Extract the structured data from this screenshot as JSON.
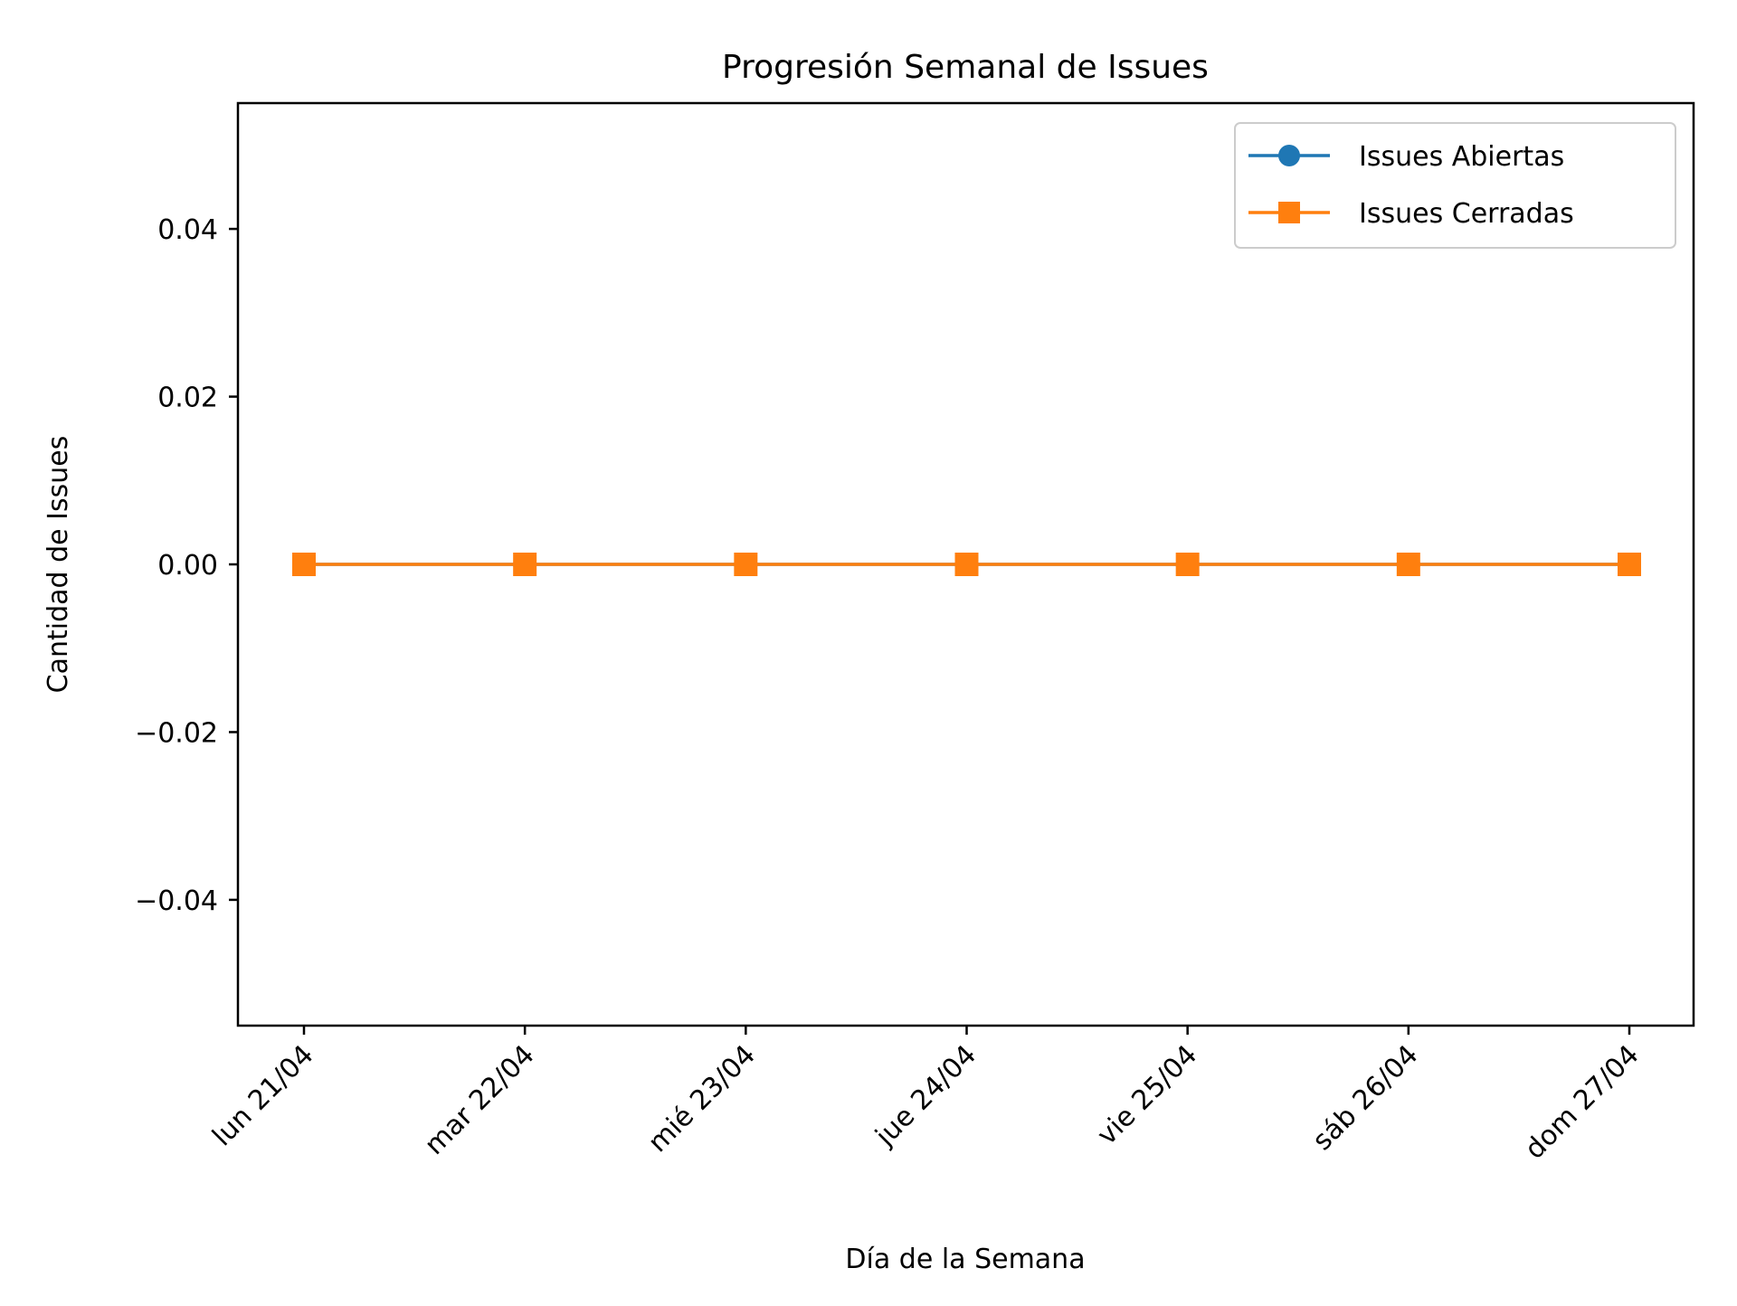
{
  "chart_data": {
    "type": "line",
    "title": "Progresión Semanal de Issues",
    "xlabel": "Día de la Semana",
    "ylabel": "Cantidad de Issues",
    "categories": [
      "lun 21/04",
      "mar 22/04",
      "mié 23/04",
      "jue 24/04",
      "vie 25/04",
      "sáb 26/04",
      "dom 27/04"
    ],
    "ylim": [
      -0.055,
      0.055
    ],
    "yticks": [
      0.04,
      0.02,
      0.0,
      -0.02,
      -0.04
    ],
    "ytick_labels": [
      "0.04",
      "0.02",
      "0.00",
      "−0.02",
      "−0.04"
    ],
    "grid": false,
    "legend_position": "top-right",
    "series": [
      {
        "name": "Issues Abiertas",
        "color": "#1f77b4",
        "marker": "circle",
        "values": [
          0,
          0,
          0,
          0,
          0,
          0,
          0
        ]
      },
      {
        "name": "Issues Cerradas",
        "color": "#ff7f0e",
        "marker": "square",
        "values": [
          0,
          0,
          0,
          0,
          0,
          0,
          0
        ]
      }
    ]
  }
}
